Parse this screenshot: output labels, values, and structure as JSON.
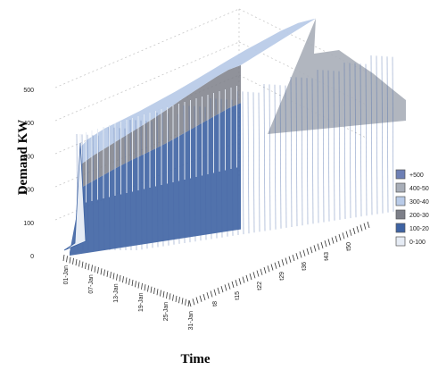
{
  "chart_data": {
    "type": "area",
    "subtype": "3d-surface",
    "title": "",
    "xlabel": "Time",
    "ylabel": "Demand KW",
    "zlim": [
      0,
      500
    ],
    "z_ticks": [
      "0",
      "100",
      "200",
      "300",
      "400",
      "500"
    ],
    "date_ticks": [
      "01-Jan",
      "07-Jan",
      "13-Jan",
      "19-Jan",
      "25-Jan",
      "31-Jan"
    ],
    "time_ticks": [
      "t8",
      "t15",
      "t22",
      "t29",
      "t36",
      "t43",
      "t50"
    ],
    "grid": true,
    "legend_position": "right",
    "legend": [
      {
        "label": "+500",
        "color": "#6d7fb5"
      },
      {
        "label": "400-50",
        "color": "#a8aeb8"
      },
      {
        "label": "300-40",
        "color": "#b9cbe8"
      },
      {
        "label": "200-30",
        "color": "#7d7f88"
      },
      {
        "label": "100-20",
        "color": "#3e63a3"
      },
      {
        "label": "0-100",
        "color": "#e6ecf5"
      }
    ],
    "series": [
      {
        "values": [
          20,
          330,
          345,
          352,
          360,
          370,
          380,
          392,
          405,
          418,
          430,
          440,
          450,
          455,
          450
        ]
      },
      {
        "values": [
          10,
          200,
          215,
          230,
          245,
          258,
          270,
          282,
          295,
          310,
          325,
          340,
          355,
          370,
          380
        ]
      }
    ]
  }
}
